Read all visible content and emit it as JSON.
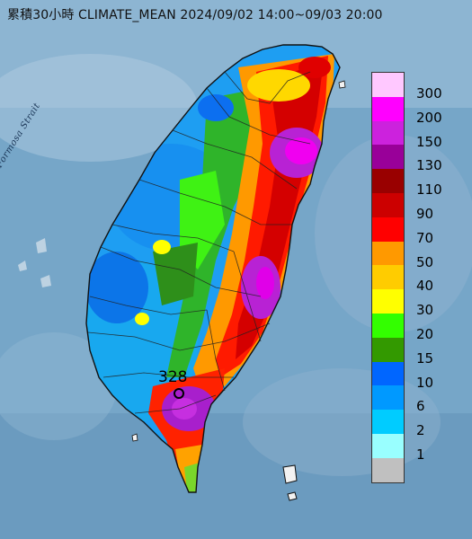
{
  "title": "累積30小時 CLIMATE_MEAN 2024/09/02 14:00~09/03 20:00",
  "sea_label": "Formosa Strait",
  "max_label": "328",
  "legend": [
    {
      "label": "300",
      "color": "#ffc8ff"
    },
    {
      "label": "200",
      "color": "#ff00ff"
    },
    {
      "label": "150",
      "color": "#cc22dd"
    },
    {
      "label": "130",
      "color": "#990099"
    },
    {
      "label": "110",
      "color": "#990000"
    },
    {
      "label": "90",
      "color": "#cc0000"
    },
    {
      "label": "70",
      "color": "#ff0000"
    },
    {
      "label": "50",
      "color": "#ff9900"
    },
    {
      "label": "40",
      "color": "#ffcc00"
    },
    {
      "label": "30",
      "color": "#ffff00"
    },
    {
      "label": "20",
      "color": "#33ff00"
    },
    {
      "label": "15",
      "color": "#339900"
    },
    {
      "label": "10",
      "color": "#0066ff"
    },
    {
      "label": "6",
      "color": "#0099ff"
    },
    {
      "label": "2",
      "color": "#00ccff"
    },
    {
      "label": "1",
      "color": "#99ffff"
    },
    {
      "label": "",
      "color": "#c0c0c0"
    }
  ]
}
